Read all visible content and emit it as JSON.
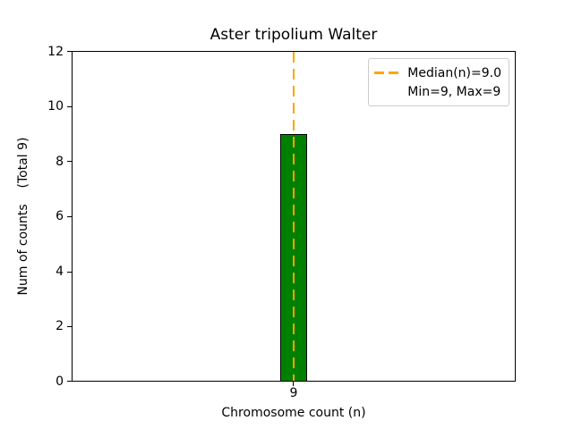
{
  "chart_data": {
    "type": "bar",
    "title": "Aster tripolium Walter",
    "xlabel": "Chromosome count (n)",
    "ylabel": "Num of counts    (Total 9)",
    "categories": [
      "9"
    ],
    "values": [
      9
    ],
    "ylim": [
      0,
      12
    ],
    "ytick_labels": [
      "12",
      "10",
      "8",
      "6",
      "4",
      "2",
      "0"
    ],
    "xtick_labels": [
      "9"
    ],
    "grid": false,
    "bar_color": "#008000",
    "bar_edge_color": "#000000",
    "median_line": {
      "value": 9.0,
      "color": "#FFA500",
      "style": "dashed"
    },
    "legend": {
      "position": "upper right",
      "entries": [
        {
          "label": "Median(n)=9.0",
          "marker": "orange-dashed-line"
        },
        {
          "label": "Min=9, Max=9",
          "marker": "none"
        }
      ]
    }
  }
}
